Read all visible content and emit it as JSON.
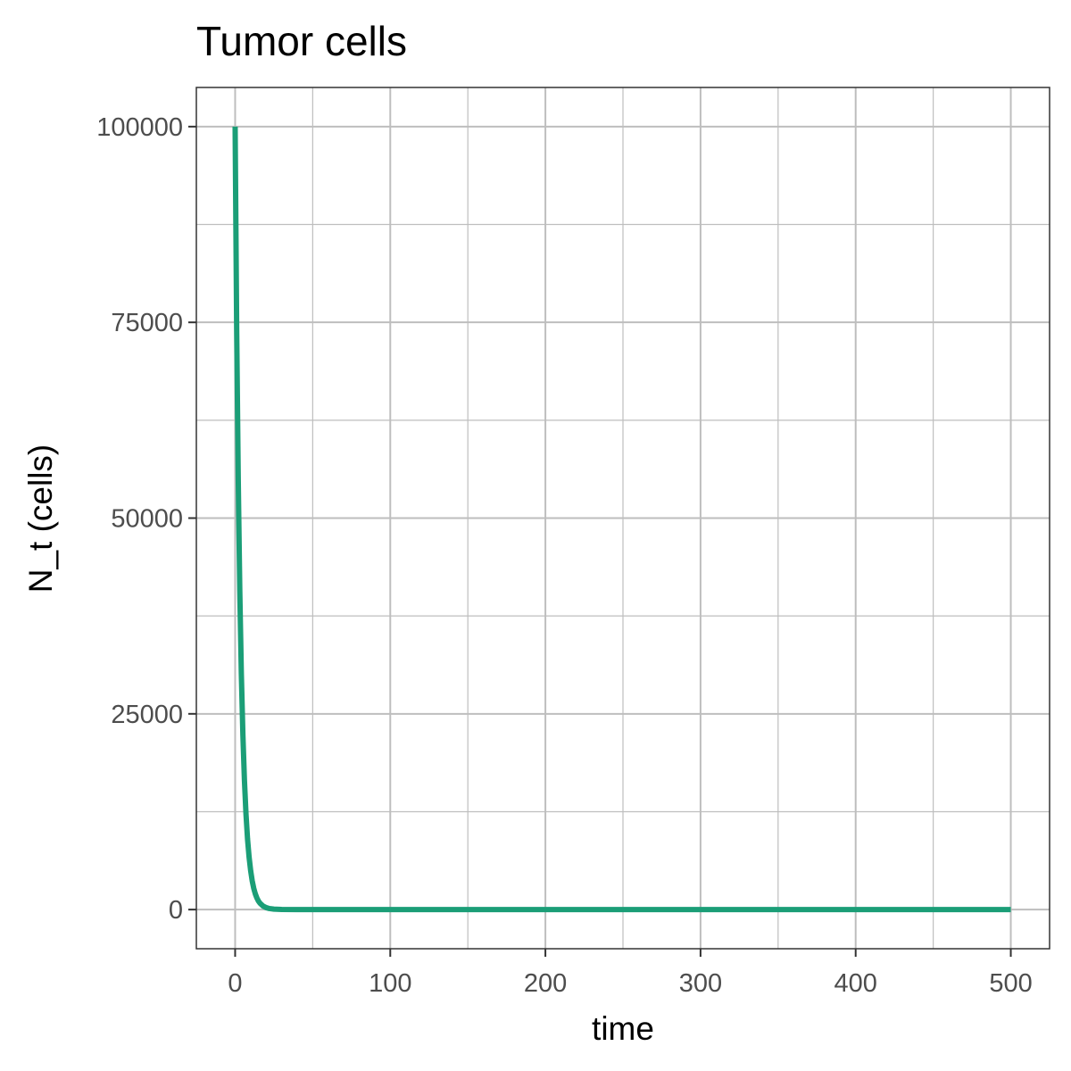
{
  "chart_data": {
    "type": "line",
    "title": "Tumor cells",
    "xlabel": "time",
    "ylabel": "N_t (cells)",
    "xlim": [
      -25,
      525
    ],
    "ylim": [
      -5000,
      105000
    ],
    "x_ticks": [
      0,
      100,
      200,
      300,
      400,
      500
    ],
    "y_ticks": [
      0,
      25000,
      50000,
      75000,
      100000
    ],
    "x_tick_labels": [
      "0",
      "100",
      "200",
      "300",
      "400",
      "500"
    ],
    "y_tick_labels": [
      "0",
      "25000",
      "50000",
      "75000",
      "100000"
    ],
    "x_minor_grid": [
      50,
      150,
      250,
      350,
      450
    ],
    "y_minor_grid": [
      12500,
      37500,
      62500,
      87500
    ],
    "grid": true,
    "series": [
      {
        "color": "#1b9e77",
        "x": [
          0,
          1,
          2,
          3,
          4,
          5,
          6,
          7,
          8,
          9,
          10,
          11,
          12,
          13,
          14,
          15,
          16,
          18,
          20,
          22,
          25,
          30,
          40,
          60,
          100,
          200,
          300,
          400,
          500
        ],
        "y": [
          100000,
          74000,
          55000,
          40700,
          30100,
          22300,
          16500,
          12200,
          9000,
          6700,
          4980,
          3680,
          2720,
          2010,
          1490,
          1100,
          820,
          450,
          250,
          135,
          55,
          12,
          1,
          0,
          0,
          0,
          0,
          0,
          0
        ]
      }
    ]
  },
  "colors": {
    "panel_border": "#333333",
    "grid": "#bebebe",
    "background": "#ffffff"
  }
}
